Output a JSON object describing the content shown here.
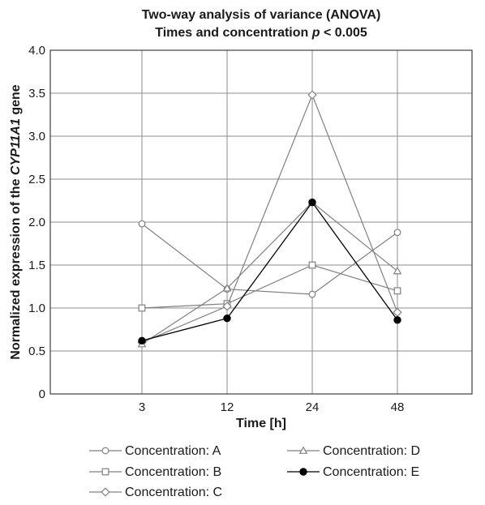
{
  "chart_data": {
    "type": "line",
    "title_line1": "Two-way analysis of variance (ANOVA)",
    "title_line2_prefix": "Times and concentration ",
    "title_line2_p": "p",
    "title_line2_suffix": " < 0.005",
    "xlabel": "Time [h]",
    "ylabel_prefix": "Normalized expression of the ",
    "ylabel_gene": "CYP11A1",
    "ylabel_suffix": " gene",
    "categories": [
      "3",
      "12",
      "24",
      "48"
    ],
    "yticks": [
      "0",
      "0.5",
      "1.0",
      "1.5",
      "2.0",
      "2.5",
      "3.0",
      "3.5",
      "4.0"
    ],
    "ylim": [
      0,
      4.0
    ],
    "grid": true,
    "legend_position": "bottom",
    "series": [
      {
        "name": "Concentration: A",
        "marker": "circle-open",
        "color": "#808080",
        "values": [
          1.98,
          1.22,
          1.16,
          1.88
        ]
      },
      {
        "name": "Concentration: B",
        "marker": "square-open",
        "color": "#808080",
        "values": [
          1.0,
          1.05,
          1.5,
          1.2
        ]
      },
      {
        "name": "Concentration: C",
        "marker": "diamond-open",
        "color": "#808080",
        "values": [
          0.6,
          1.02,
          3.48,
          0.95
        ]
      },
      {
        "name": "Concentration: D",
        "marker": "triangle-open",
        "color": "#808080",
        "values": [
          0.58,
          1.23,
          2.23,
          1.43
        ]
      },
      {
        "name": "Concentration: E",
        "marker": "circle-filled",
        "color": "#000000",
        "values": [
          0.62,
          0.88,
          2.23,
          0.86
        ]
      }
    ]
  }
}
